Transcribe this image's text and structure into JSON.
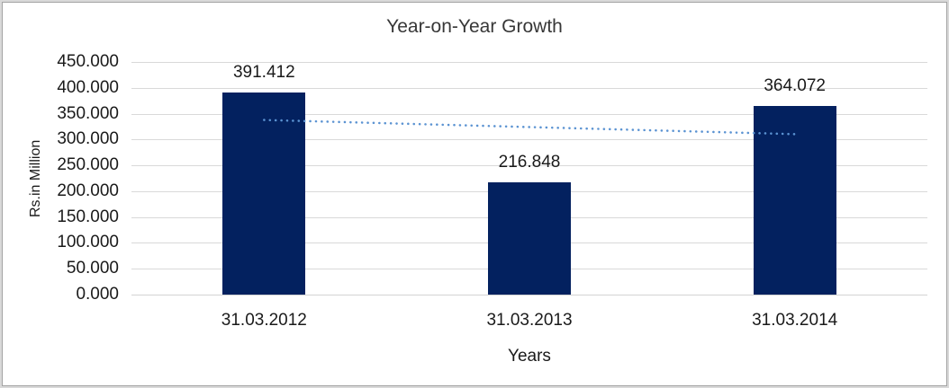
{
  "chart_data": {
    "type": "bar",
    "title": "Year-on-Year Growth",
    "xlabel": "Years",
    "ylabel": "Rs.in Million",
    "categories": [
      "31.03.2012",
      "31.03.2013",
      "31.03.2014"
    ],
    "values": [
      391.412,
      216.848,
      364.072
    ],
    "data_labels": [
      "391.412",
      "216.848",
      "364.072"
    ],
    "y_ticks": [
      {
        "value": 0,
        "label": "0.000"
      },
      {
        "value": 50,
        "label": "50.000"
      },
      {
        "value": 100,
        "label": "100.000"
      },
      {
        "value": 150,
        "label": "150.000"
      },
      {
        "value": 200,
        "label": "200.000"
      },
      {
        "value": 250,
        "label": "250.000"
      },
      {
        "value": 300,
        "label": "300.000"
      },
      {
        "value": 350,
        "label": "350.000"
      },
      {
        "value": 400,
        "label": "400.000"
      },
      {
        "value": 450,
        "label": "450.000"
      }
    ],
    "ylim": [
      0,
      450
    ],
    "grid": "horizontal",
    "legend_position": "none",
    "colors": {
      "bar": "#03215f",
      "gridline": "#d9d9d9",
      "axis_line": "#d3d3d3",
      "trendline": "#5b93d2",
      "title_text": "#373737",
      "tick_text": "#1a1a1a",
      "frame_outer": "#d9d9d9",
      "frame_line": "#a3a3a3",
      "background": "#ffffff"
    },
    "trendline": {
      "type": "linear",
      "style": "dotted",
      "start_value": 337.8,
      "end_value": 310.4
    }
  }
}
